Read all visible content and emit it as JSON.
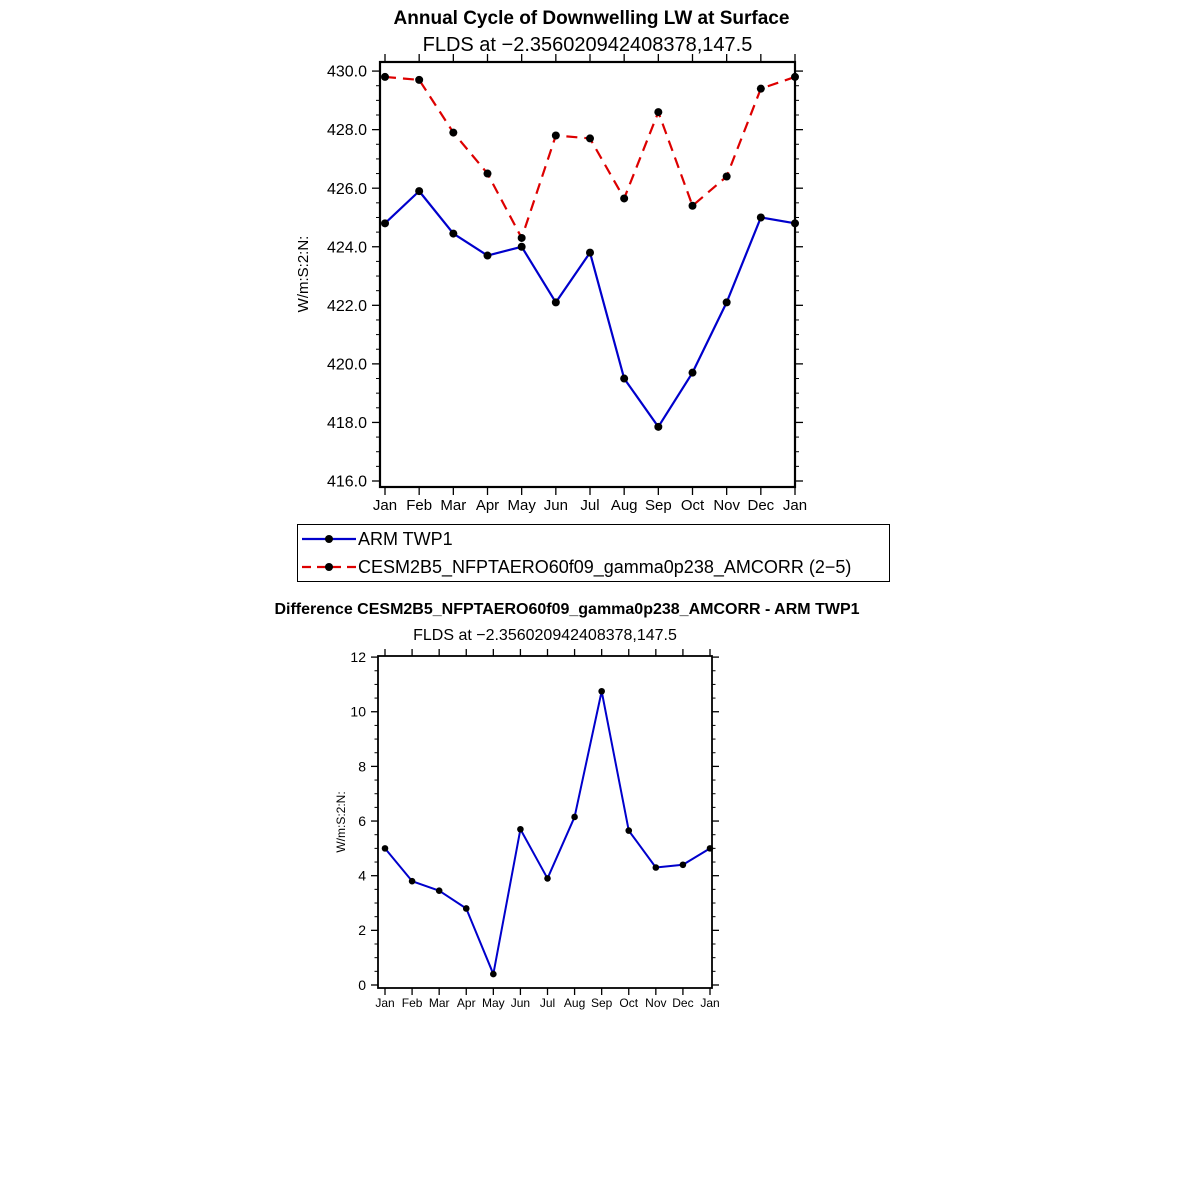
{
  "chart_data": [
    {
      "type": "line",
      "title": "Annual Cycle of Downwelling LW at Surface",
      "subtitle": "FLDS at −2.356020942408378,147.5",
      "ylabel": "W/m:S:2:N:",
      "categories": [
        "Jan",
        "Feb",
        "Mar",
        "Apr",
        "May",
        "Jun",
        "Jul",
        "Aug",
        "Sep",
        "Oct",
        "Nov",
        "Dec",
        "Jan"
      ],
      "ylim": [
        416,
        430
      ],
      "ytick_step": 2,
      "ytick_decimals": 1,
      "grid": false,
      "legend_position": "below",
      "series": [
        {
          "name": "ARM TWP1",
          "color": "#0000cc",
          "style": "solid",
          "marker": "filled-circle",
          "marker_color": "#000000",
          "values": [
            424.8,
            425.9,
            424.45,
            423.7,
            424.0,
            422.1,
            423.8,
            419.5,
            417.85,
            419.7,
            422.1,
            425.0,
            424.8
          ]
        },
        {
          "name": "CESM2B5_NFPTAERO60f09_gamma0p238_AMCORR (2−5)",
          "color": "#dd0000",
          "style": "dashed",
          "marker": "filled-circle",
          "marker_color": "#000000",
          "values": [
            429.8,
            429.7,
            427.9,
            426.5,
            424.3,
            427.8,
            427.7,
            425.65,
            428.6,
            425.4,
            426.4,
            429.4,
            429.8
          ]
        }
      ]
    },
    {
      "type": "line",
      "title": "Difference CESM2B5_NFPTAERO60f09_gamma0p238_AMCORR - ARM TWP1",
      "subtitle": "FLDS at −2.356020942408378,147.5",
      "ylabel": "W/m:S:2:N:",
      "categories": [
        "Jan",
        "Feb",
        "Mar",
        "Apr",
        "May",
        "Jun",
        "Jul",
        "Aug",
        "Sep",
        "Oct",
        "Nov",
        "Dec",
        "Jan"
      ],
      "ylim": [
        0,
        12
      ],
      "ytick_step": 2,
      "ytick_decimals": 0,
      "grid": false,
      "legend_position": "none",
      "series": [
        {
          "color": "#0000cc",
          "style": "solid",
          "marker": "filled-circle",
          "marker_color": "#000000",
          "values": [
            5.0,
            3.8,
            3.45,
            2.8,
            0.4,
            5.7,
            3.9,
            6.15,
            10.75,
            5.65,
            4.3,
            4.4,
            5.0
          ]
        }
      ]
    }
  ]
}
